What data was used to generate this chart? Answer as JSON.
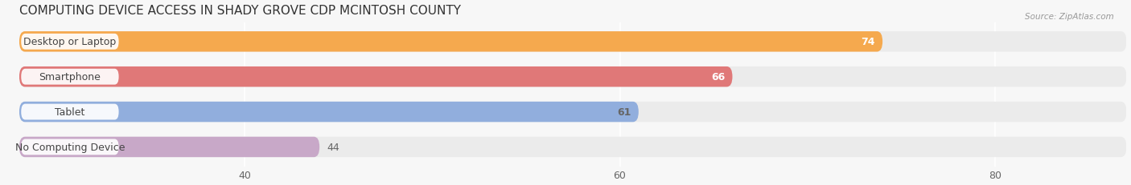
{
  "title": "COMPUTING DEVICE ACCESS IN SHADY GROVE CDP MCINTOSH COUNTY",
  "source": "Source: ZipAtlas.com",
  "categories": [
    "Desktop or Laptop",
    "Smartphone",
    "Tablet",
    "No Computing Device"
  ],
  "values": [
    74,
    66,
    61,
    44
  ],
  "bar_colors": [
    "#f5a94e",
    "#e07878",
    "#91aedd",
    "#c8a8c8"
  ],
  "bar_bg_color": "#ebebeb",
  "value_label_colors": [
    "white",
    "white",
    "#666666",
    "#666666"
  ],
  "xlim_min": 28,
  "xlim_max": 87,
  "xticks": [
    40,
    60,
    80
  ],
  "background_color": "#f7f7f7",
  "title_fontsize": 11,
  "label_fontsize": 9,
  "value_fontsize": 9,
  "bar_height": 0.58,
  "label_pill_color": "white",
  "label_text_color": "#444444"
}
